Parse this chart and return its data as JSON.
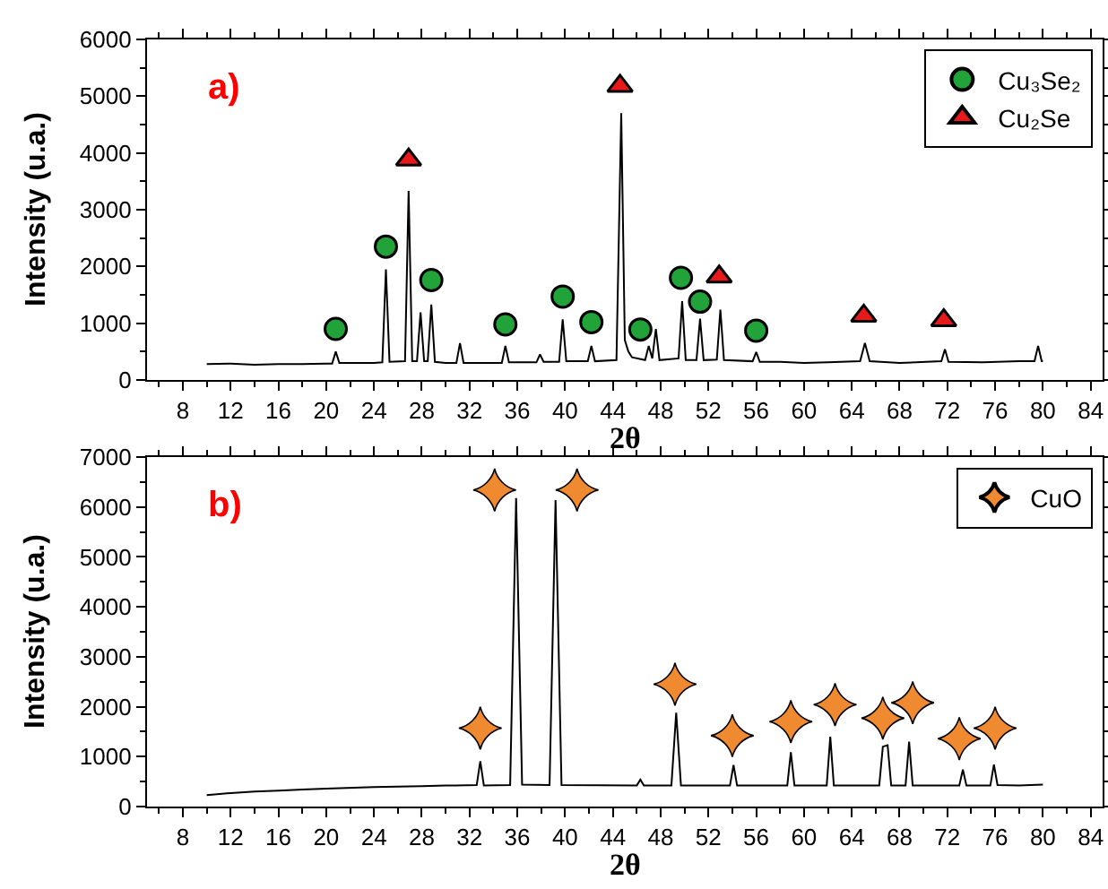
{
  "chart_data": [
    {
      "type": "line",
      "title": "a)",
      "xlabel": "2θ",
      "ylabel": "Intensity (u.a.)",
      "xlim": [
        5,
        85
      ],
      "xticks": [
        8,
        12,
        16,
        20,
        24,
        28,
        32,
        36,
        40,
        44,
        48,
        52,
        56,
        60,
        64,
        68,
        72,
        76,
        80,
        84
      ],
      "ylim": [
        0,
        6000
      ],
      "yticks": [
        0,
        1000,
        2000,
        3000,
        4000,
        5000,
        6000
      ],
      "legend": "top right",
      "series": [
        {
          "color": "#000000",
          "x": [
            10,
            12,
            14,
            16,
            18,
            20,
            20.5,
            20.8,
            21.1,
            22,
            24,
            24.7,
            25.0,
            25.3,
            26.6,
            26.9,
            27.2,
            27.6,
            27.9,
            28.2,
            28.5,
            28.8,
            29.1,
            30,
            30.9,
            31.2,
            31.5,
            33,
            34.7,
            35.0,
            35.3,
            37.6,
            37.9,
            38.2,
            39.5,
            39.8,
            40.1,
            41.9,
            42.2,
            42.5,
            44.3,
            44.7,
            45.0,
            45.3,
            45.6,
            46.7,
            47.0,
            47.3,
            47.6,
            47.9,
            49.5,
            49.8,
            50.1,
            51.0,
            51.3,
            51.6,
            52.7,
            53.0,
            53.3,
            55.7,
            56.0,
            56.3,
            58,
            60,
            62,
            64.7,
            65.1,
            65.5,
            68,
            71.5,
            71.8,
            72.1,
            75,
            78,
            79.3,
            79.6,
            79.9,
            80
          ],
          "values": [
            280,
            290,
            270,
            280,
            280,
            290,
            290,
            500,
            300,
            300,
            300,
            310,
            1950,
            320,
            330,
            3330,
            330,
            330,
            1190,
            330,
            330,
            1330,
            320,
            300,
            300,
            650,
            300,
            300,
            300,
            600,
            310,
            310,
            450,
            320,
            320,
            1070,
            330,
            330,
            600,
            330,
            350,
            4700,
            700,
            500,
            400,
            350,
            600,
            380,
            900,
            350,
            380,
            1390,
            350,
            350,
            1080,
            350,
            360,
            1240,
            350,
            330,
            490,
            320,
            320,
            300,
            310,
            330,
            650,
            330,
            300,
            330,
            540,
            320,
            310,
            330,
            330,
            600,
            330,
            330
          ]
        },
        {
          "type": "scatter",
          "name": "Cu₃Se₂",
          "color": "#22a33a",
          "marker": "circle",
          "x": [
            20.8,
            25.0,
            28.8,
            35.0,
            39.8,
            42.2,
            46.3,
            49.7,
            51.3,
            56.0
          ],
          "values": [
            900,
            2350,
            1760,
            980,
            1470,
            1020,
            890,
            1800,
            1380,
            870
          ]
        },
        {
          "type": "scatter",
          "name": "Cu₂Se",
          "color": "#e8191a",
          "marker": "triangle",
          "x": [
            26.9,
            44.6,
            52.9,
            65.0,
            71.7
          ],
          "values": [
            3880,
            5180,
            1820,
            1130,
            1050
          ]
        }
      ]
    },
    {
      "type": "line",
      "title": "b)",
      "xlabel": "2θ",
      "ylabel": "Intensity (u.a.)",
      "xlim": [
        5,
        85
      ],
      "xticks": [
        8,
        12,
        16,
        20,
        24,
        28,
        32,
        36,
        40,
        44,
        48,
        52,
        56,
        60,
        64,
        68,
        72,
        76,
        80,
        84
      ],
      "ylim": [
        0,
        7000
      ],
      "yticks": [
        0,
        1000,
        2000,
        3000,
        4000,
        5000,
        6000,
        7000
      ],
      "legend": "top right",
      "series": [
        {
          "color": "#000000",
          "x": [
            10,
            12,
            14,
            16,
            18,
            20,
            24,
            28,
            30,
            32.6,
            32.9,
            33.2,
            35.4,
            35.9,
            36.4,
            38.7,
            39.2,
            39.7,
            46.0,
            46.3,
            46.6,
            48.9,
            49.3,
            49.7,
            53.8,
            54.1,
            54.4,
            58.6,
            58.9,
            59.2,
            61.9,
            62.2,
            62.5,
            66.3,
            66.6,
            67.0,
            67.3,
            68.5,
            68.8,
            69.1,
            73.0,
            73.3,
            73.6,
            75.6,
            75.9,
            76.2,
            78,
            80
          ],
          "values": [
            230,
            270,
            300,
            320,
            340,
            360,
            390,
            410,
            420,
            430,
            910,
            420,
            430,
            6180,
            440,
            430,
            6140,
            430,
            420,
            540,
            420,
            420,
            1880,
            420,
            420,
            830,
            420,
            420,
            1090,
            420,
            420,
            1400,
            420,
            420,
            1200,
            1230,
            420,
            420,
            1300,
            420,
            420,
            740,
            420,
            420,
            840,
            430,
            420,
            440
          ]
        },
        {
          "type": "scatter",
          "name": "CuO",
          "color": "#f08a30",
          "marker": "star",
          "x": [
            32.9,
            34.1,
            41.0,
            49.2,
            54.0,
            58.9,
            62.6,
            66.6,
            69.1,
            73.0,
            76.0
          ],
          "values": [
            1570,
            6340,
            6340,
            2450,
            1420,
            1700,
            2040,
            1770,
            2080,
            1360,
            1570
          ]
        }
      ]
    }
  ]
}
